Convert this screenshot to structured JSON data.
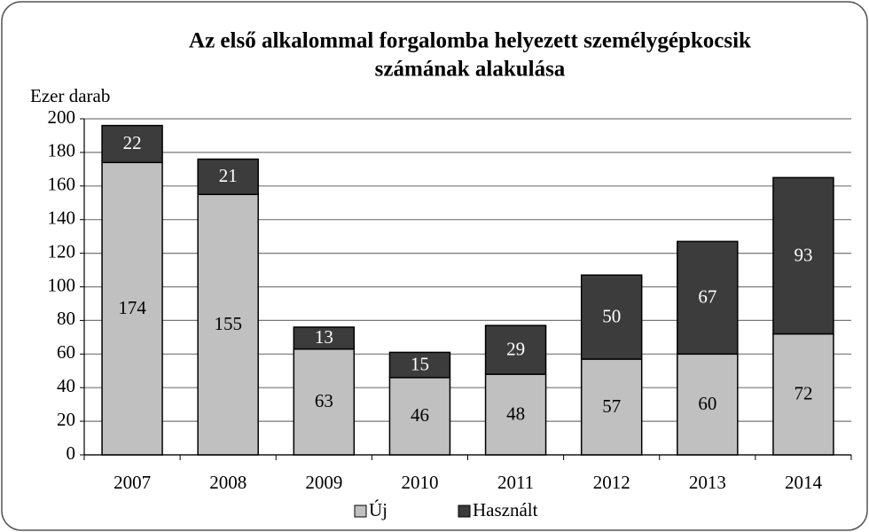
{
  "chart_data": {
    "type": "stacked_bar",
    "title": [
      "Az első alkalommal forgalomba helyezett személygépkocsik",
      "számának alakulása"
    ],
    "y_label": "Ezer darab",
    "categories": [
      "2007",
      "2008",
      "2009",
      "2010",
      "2011",
      "2012",
      "2013",
      "2014"
    ],
    "series": [
      {
        "name": "Új",
        "color": "#c0c0c0",
        "label_color": "#000000",
        "values": [
          174,
          155,
          63,
          46,
          48,
          57,
          60,
          72
        ]
      },
      {
        "name": "Használt",
        "color": "#3c3c3c",
        "label_color": "#ffffff",
        "values": [
          22,
          21,
          13,
          15,
          29,
          50,
          67,
          93
        ]
      }
    ],
    "ylim": [
      0,
      200
    ],
    "yticks": [
      0,
      20,
      40,
      60,
      80,
      100,
      120,
      140,
      160,
      180,
      200
    ],
    "grid": true,
    "legend": "bottom"
  }
}
